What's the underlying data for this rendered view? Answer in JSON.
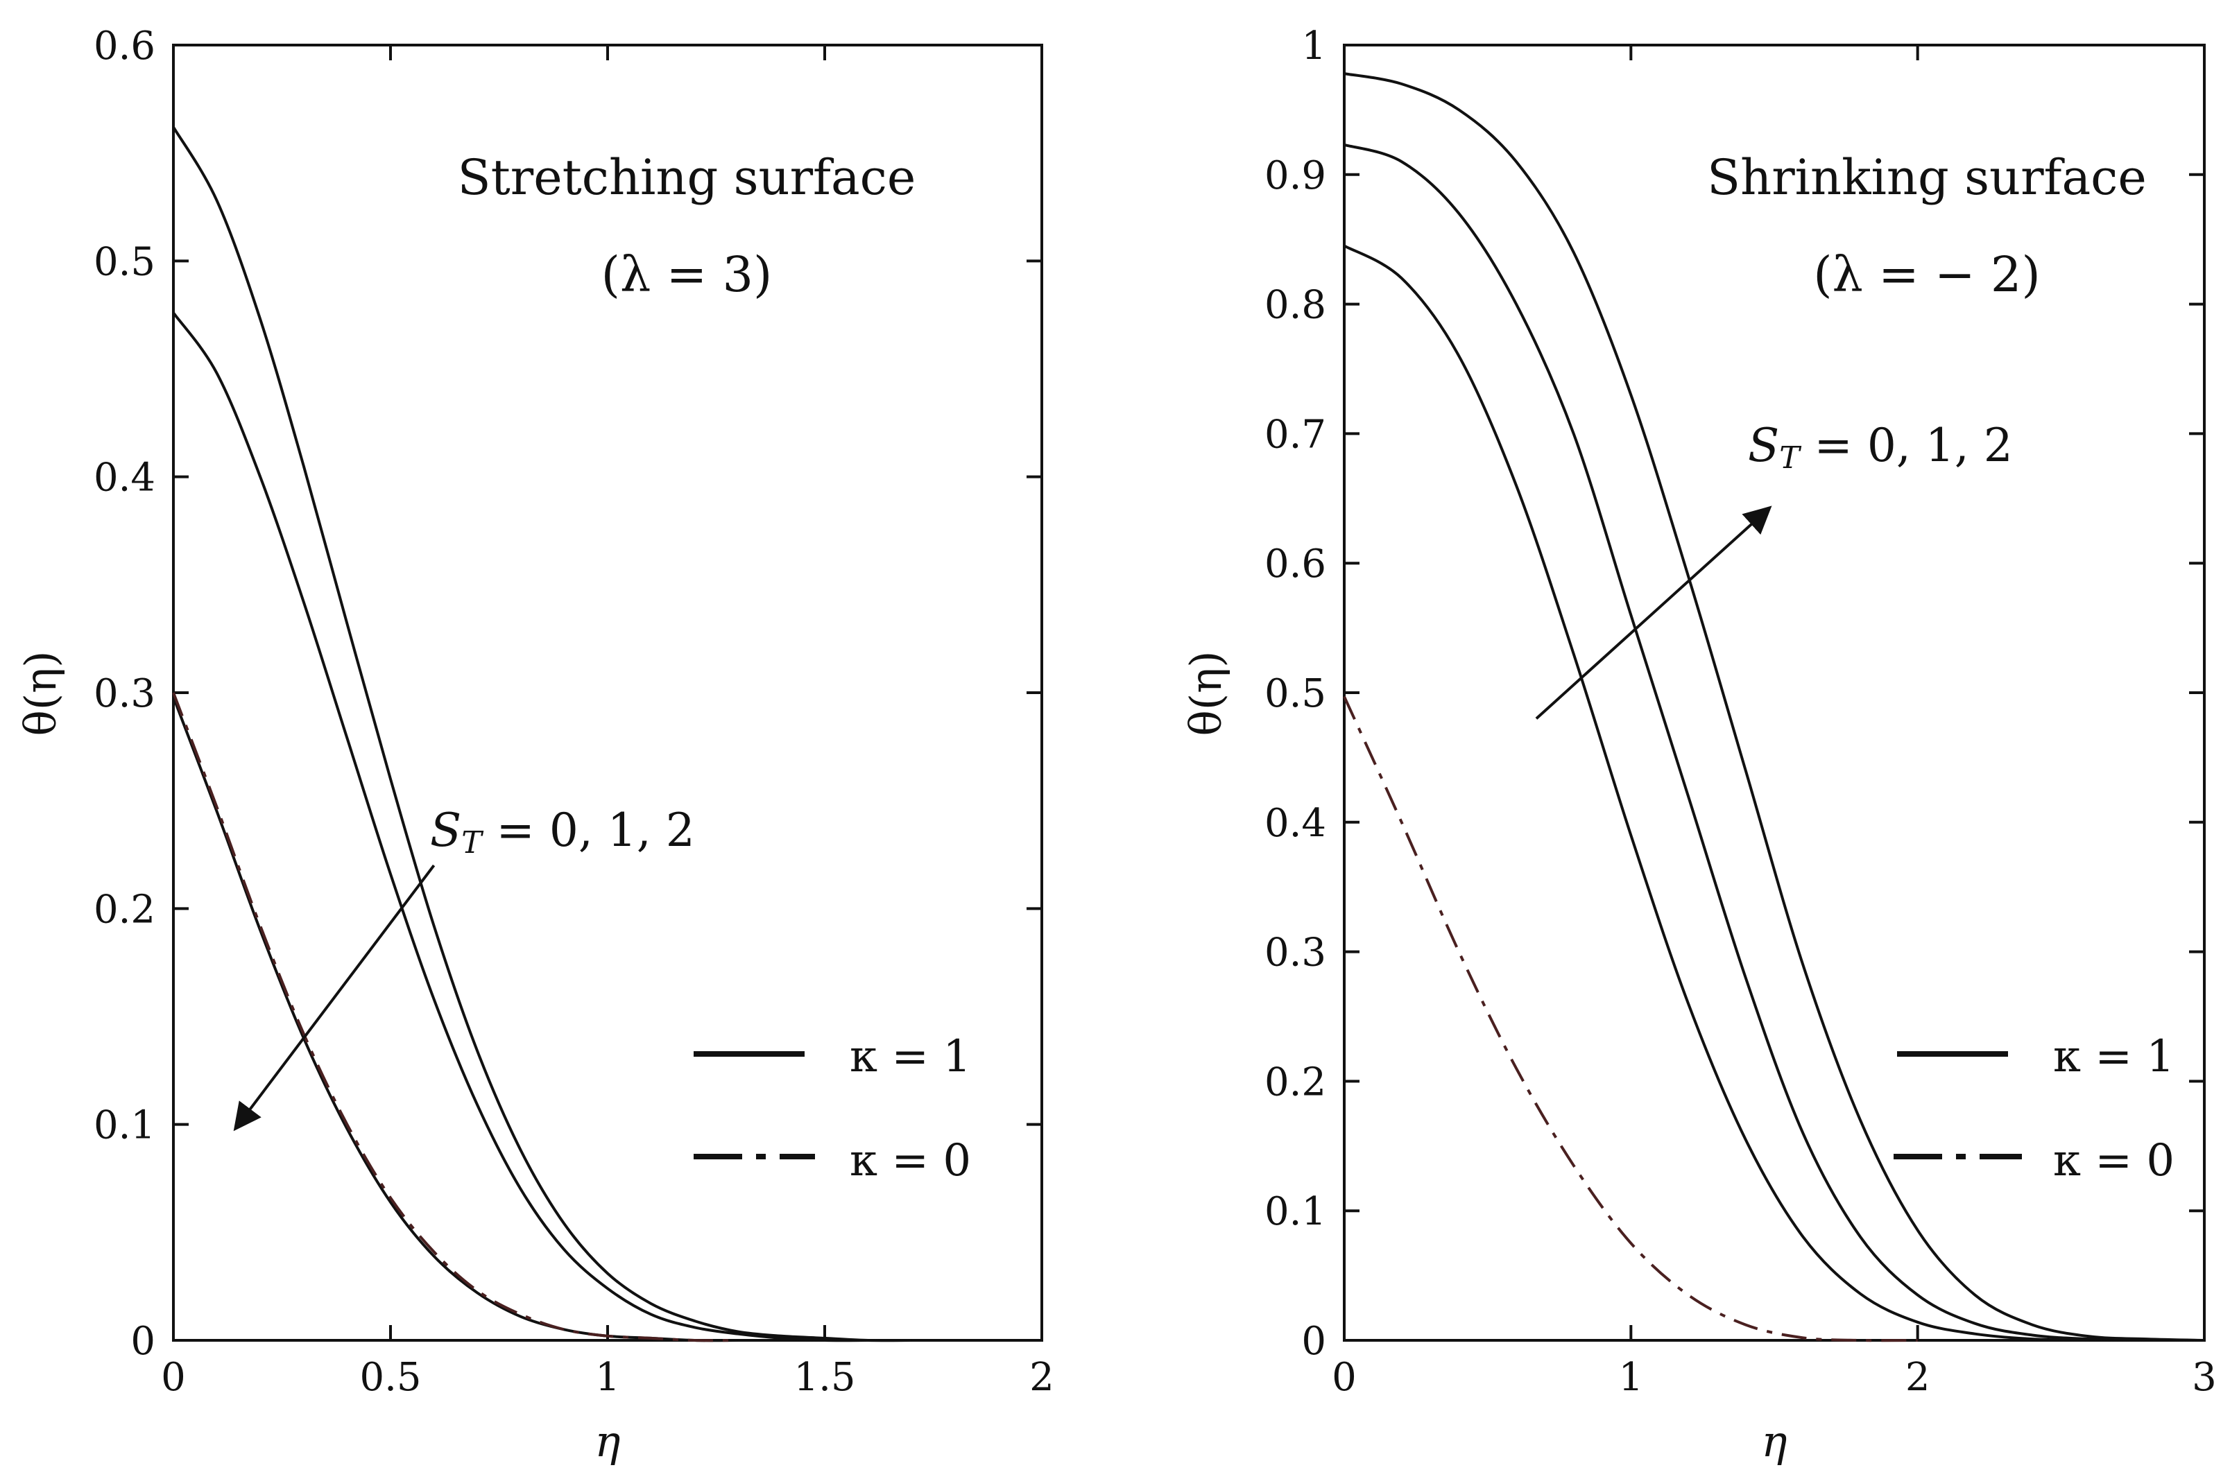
{
  "chart_data": [
    {
      "type": "line",
      "title": "Stretching surface",
      "subtitle": "(λ = 3)",
      "xlabel": "η",
      "ylabel": "θ(η)",
      "xlim": [
        0,
        2
      ],
      "ylim": [
        0,
        0.6
      ],
      "xticks": [
        0,
        0.5,
        1,
        1.5,
        2
      ],
      "xtick_labels": [
        "0",
        "0.5",
        "1",
        "1.5",
        "2"
      ],
      "yticks": [
        0,
        0.1,
        0.2,
        0.3,
        0.4,
        0.5,
        0.6
      ],
      "ytick_labels": [
        "0",
        "0.1",
        "0.2",
        "0.3",
        "0.4",
        "0.5",
        "0.6"
      ],
      "grid": false,
      "annotation": {
        "text_main": "S",
        "text_sub": "T",
        "text_rest": " = 0, 1, 2",
        "arrow_from": [
          0.6,
          0.22
        ],
        "arrow_to": [
          0.15,
          0.1
        ]
      },
      "legend": [
        {
          "label": "κ = 1",
          "style": "solid"
        },
        {
          "label": "κ = 0",
          "style": "dashdot"
        }
      ],
      "series": [
        {
          "name": "κ = 1, S_T = 0",
          "style": "solid",
          "color": "#111111",
          "x": [
            0,
            0.1,
            0.2,
            0.3,
            0.4,
            0.5,
            0.6,
            0.7,
            0.8,
            0.9,
            1.0,
            1.1,
            1.2,
            1.3,
            1.4,
            1.5,
            1.6,
            1.7
          ],
          "y": [
            0.562,
            0.528,
            0.473,
            0.405,
            0.332,
            0.26,
            0.192,
            0.134,
            0.088,
            0.054,
            0.031,
            0.017,
            0.009,
            0.004,
            0.002,
            0.001,
            0.0,
            0.0
          ]
        },
        {
          "name": "κ = 1, S_T = 1",
          "style": "solid",
          "color": "#111111",
          "x": [
            0,
            0.1,
            0.2,
            0.3,
            0.4,
            0.5,
            0.6,
            0.7,
            0.8,
            0.9,
            1.0,
            1.1,
            1.2,
            1.3,
            1.4,
            1.5,
            1.6
          ],
          "y": [
            0.476,
            0.448,
            0.4,
            0.342,
            0.279,
            0.216,
            0.158,
            0.109,
            0.07,
            0.042,
            0.024,
            0.012,
            0.006,
            0.003,
            0.001,
            0.0,
            0.0
          ]
        },
        {
          "name": "κ = 1, S_T = 2",
          "style": "solid",
          "color": "#111111",
          "x": [
            0,
            0.1,
            0.2,
            0.3,
            0.4,
            0.5,
            0.6,
            0.7,
            0.8,
            0.9,
            1.0,
            1.1,
            1.2,
            1.3
          ],
          "y": [
            0.298,
            0.245,
            0.19,
            0.14,
            0.098,
            0.064,
            0.039,
            0.022,
            0.011,
            0.005,
            0.002,
            0.001,
            0.0,
            0.0
          ]
        },
        {
          "name": "κ = 0",
          "style": "dashdot",
          "color": "#4a2020",
          "x": [
            0,
            0.1,
            0.2,
            0.3,
            0.4,
            0.5,
            0.6,
            0.7,
            0.8,
            0.9,
            1.0,
            1.1,
            1.2,
            1.3
          ],
          "y": [
            0.3,
            0.247,
            0.192,
            0.142,
            0.1,
            0.066,
            0.041,
            0.023,
            0.012,
            0.005,
            0.002,
            0.001,
            0.0,
            0.0
          ]
        }
      ]
    },
    {
      "type": "line",
      "title": "Shrinking surface",
      "subtitle": "(λ = − 2)",
      "xlabel": "η",
      "ylabel": "θ(η)",
      "xlim": [
        0,
        3
      ],
      "ylim": [
        0,
        1
      ],
      "xticks": [
        0,
        1,
        2,
        3
      ],
      "xtick_labels": [
        "0",
        "1",
        "2",
        "3"
      ],
      "yticks": [
        0,
        0.1,
        0.2,
        0.3,
        0.4,
        0.5,
        0.6,
        0.7,
        0.8,
        0.9,
        1
      ],
      "ytick_labels": [
        "0",
        "0.1",
        "0.2",
        "0.3",
        "0.4",
        "0.5",
        "0.6",
        "0.7",
        "0.8",
        "0.9",
        "1"
      ],
      "grid": false,
      "annotation": {
        "text_main": "S",
        "text_sub": "T",
        "text_rest": " = 0, 1, 2",
        "arrow_from": [
          0.67,
          0.48
        ],
        "arrow_to": [
          1.47,
          0.64
        ]
      },
      "legend": [
        {
          "label": "κ = 1",
          "style": "solid"
        },
        {
          "label": "κ = 0",
          "style": "dashdot"
        }
      ],
      "series": [
        {
          "name": "κ = 1, S_T = 0",
          "style": "solid",
          "color": "#111111",
          "x": [
            0,
            0.2,
            0.4,
            0.6,
            0.8,
            1.0,
            1.2,
            1.4,
            1.6,
            1.8,
            2.0,
            2.2,
            2.4,
            2.6
          ],
          "y": [
            0.845,
            0.82,
            0.76,
            0.66,
            0.53,
            0.39,
            0.26,
            0.155,
            0.08,
            0.036,
            0.014,
            0.005,
            0.001,
            0.0
          ]
        },
        {
          "name": "κ = 1, S_T = 1",
          "style": "solid",
          "color": "#111111",
          "x": [
            0,
            0.2,
            0.4,
            0.6,
            0.8,
            1.0,
            1.2,
            1.4,
            1.6,
            1.8,
            2.0,
            2.2,
            2.4,
            2.6,
            2.8
          ],
          "y": [
            0.923,
            0.91,
            0.87,
            0.8,
            0.7,
            0.56,
            0.42,
            0.28,
            0.16,
            0.08,
            0.035,
            0.013,
            0.004,
            0.001,
            0.0
          ]
        },
        {
          "name": "κ = 1, S_T = 2",
          "style": "solid",
          "color": "#111111",
          "x": [
            0,
            0.2,
            0.4,
            0.6,
            0.8,
            1.0,
            1.2,
            1.4,
            1.6,
            1.8,
            2.0,
            2.2,
            2.4,
            2.6,
            2.8,
            3.0
          ],
          "y": [
            0.978,
            0.97,
            0.95,
            0.91,
            0.84,
            0.73,
            0.59,
            0.44,
            0.29,
            0.17,
            0.085,
            0.035,
            0.012,
            0.003,
            0.001,
            0.0
          ]
        },
        {
          "name": "κ = 0",
          "style": "dashdot",
          "color": "#4a2020",
          "x": [
            0,
            0.2,
            0.4,
            0.6,
            0.8,
            1.0,
            1.2,
            1.4,
            1.6,
            1.8,
            2.0
          ],
          "y": [
            0.497,
            0.4,
            0.3,
            0.21,
            0.135,
            0.075,
            0.035,
            0.012,
            0.002,
            0.0,
            0.0
          ]
        }
      ]
    }
  ]
}
